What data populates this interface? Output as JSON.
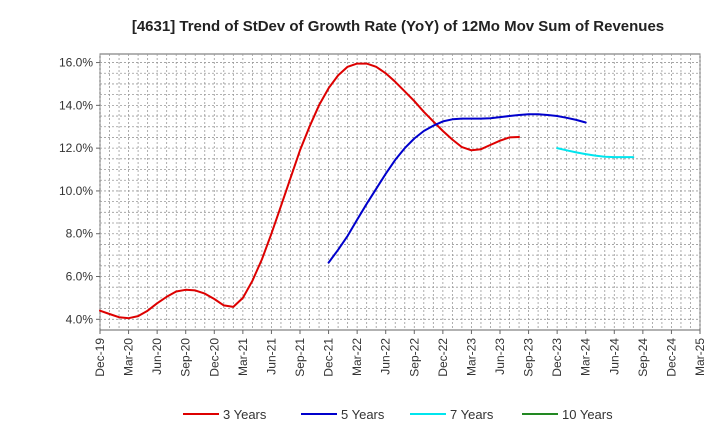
{
  "chart_data": {
    "type": "line",
    "title": "[4631]  Trend of StDev of Growth Rate (YoY) of 12Mo Mov Sum of Revenues",
    "xlabel": "",
    "ylabel": "",
    "x_ticks": [
      "Dec-19",
      "Mar-20",
      "Jun-20",
      "Sep-20",
      "Dec-20",
      "Mar-21",
      "Jun-21",
      "Sep-21",
      "Dec-21",
      "Mar-22",
      "Jun-22",
      "Sep-22",
      "Dec-22",
      "Mar-23",
      "Jun-23",
      "Sep-23",
      "Dec-23",
      "Mar-24",
      "Jun-24",
      "Sep-24",
      "Dec-24",
      "Mar-25"
    ],
    "y_ticks": [
      "4.0%",
      "6.0%",
      "8.0%",
      "10.0%",
      "12.0%",
      "14.0%",
      "16.0%"
    ],
    "y_tick_values": [
      4,
      6,
      8,
      10,
      12,
      14,
      16
    ],
    "ylim": [
      3.5,
      16.4
    ],
    "grid": true,
    "legend_position": "bottom",
    "series": [
      {
        "name": "3 Years",
        "color": "#dd0000",
        "start_index": 0,
        "values": [
          4.4,
          4.25,
          4.1,
          4.05,
          4.15,
          4.4,
          4.75,
          5.05,
          5.3,
          5.38,
          5.35,
          5.2,
          4.95,
          4.65,
          4.58,
          5.0,
          5.8,
          6.8,
          8.0,
          9.3,
          10.6,
          11.9,
          13.0,
          14.0,
          14.8,
          15.4,
          15.8,
          15.95,
          15.95,
          15.8,
          15.5,
          15.1,
          14.65,
          14.2,
          13.7,
          13.25,
          12.8,
          12.4,
          12.05,
          11.9,
          11.95,
          12.15,
          12.35,
          12.5,
          12.52
        ]
      },
      {
        "name": "5 Years",
        "color": "#0000cc",
        "start_index": 24,
        "values": [
          6.65,
          7.25,
          7.9,
          8.65,
          9.4,
          10.1,
          10.8,
          11.45,
          12.0,
          12.45,
          12.8,
          13.05,
          13.25,
          13.35,
          13.38,
          13.38,
          13.38,
          13.4,
          13.45,
          13.5,
          13.55,
          13.58,
          13.58,
          13.55,
          13.5,
          13.42,
          13.32,
          13.2
        ]
      },
      {
        "name": "7 Years",
        "color": "#00e5ee",
        "start_index": 48,
        "values": [
          12.0,
          11.9,
          11.8,
          11.72,
          11.65,
          11.6,
          11.58,
          11.58,
          11.58
        ]
      },
      {
        "name": "10 Years",
        "color": "#228822",
        "start_index": 60,
        "values": []
      }
    ]
  }
}
